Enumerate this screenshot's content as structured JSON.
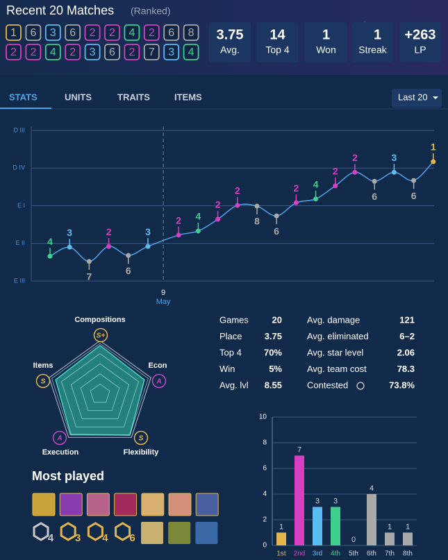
{
  "header": {
    "title": "Recent 20 Matches",
    "subtitle": "(Ranked)"
  },
  "placements": [
    [
      1,
      6,
      3,
      6,
      2,
      2,
      4,
      2,
      6,
      8
    ],
    [
      2,
      2,
      4,
      2,
      3,
      6,
      2,
      7,
      3,
      4
    ]
  ],
  "placement_colors": [
    "#e3b54a",
    "#d63fc2",
    "#5bbcf2",
    "#3ecf8e",
    "#a9a9a9",
    "#a9a9a9",
    "#a9a9a9",
    "#a9a9a9"
  ],
  "summary": [
    {
      "value": 3.75,
      "label": "Avg."
    },
    {
      "value": 14,
      "label": "Top 4"
    },
    {
      "value": 1,
      "label": "Won"
    },
    {
      "value": 1,
      "label": "Streak"
    },
    {
      "value": "+263",
      "label": "LP"
    }
  ],
  "tabs": [
    "STATS",
    "UNITS",
    "TRAITS",
    "ITEMS"
  ],
  "active_tab": 0,
  "filter": "Last 20",
  "chart_data": [
    {
      "type": "line",
      "color": "#4fa3e8",
      "grid": true,
      "ylim": [
        0,
        400
      ],
      "yticks": [
        {
          "value": 400,
          "label": "D III"
        },
        {
          "value": 300,
          "label": "D IV"
        },
        {
          "value": 200,
          "label": "E I"
        },
        {
          "value": 100,
          "label": "E II"
        },
        {
          "value": 0,
          "label": "E III"
        }
      ],
      "values": [
        66,
        90,
        52,
        92,
        68,
        92,
        122,
        133,
        164,
        201,
        199,
        173,
        208,
        218,
        253,
        289,
        265,
        289,
        267,
        317
      ],
      "x_annotation": {
        "day": "9",
        "month": "May"
      }
    },
    {
      "type": "radar",
      "color": "#2a9d8f",
      "categories": [
        "Compositions",
        "Econ",
        "Flexibility",
        "Execution",
        "Items"
      ],
      "grades": [
        "S+",
        "A",
        "S",
        "A",
        "S"
      ],
      "grade_colors": {
        "S+": "#e3b54a",
        "S": "#e3b54a",
        "A": "#c746c9"
      },
      "values": [
        4.8,
        4.6,
        5,
        4.9,
        4.6
      ],
      "rlim": [
        0,
        5
      ],
      "rticks": [
        1,
        2,
        3,
        4,
        5
      ]
    },
    {
      "type": "bar",
      "categories": [
        "1st",
        "2nd",
        "3rd",
        "4th",
        "5th",
        "6th",
        "7th",
        "8th"
      ],
      "values": [
        1,
        7,
        3,
        3,
        0,
        4,
        1,
        1
      ],
      "colors": [
        "#e3b54a",
        "#d63fc2",
        "#5bbcf2",
        "#3ecf8e",
        "#a9a9a9",
        "#a9a9a9",
        "#a9a9a9",
        "#a9a9a9"
      ],
      "ylim": [
        0,
        10
      ],
      "yticks": [
        0,
        2,
        4,
        6,
        8,
        10
      ],
      "grid": true
    }
  ],
  "stats": {
    "left": [
      [
        "Games",
        20
      ],
      [
        "Place",
        3.75
      ],
      [
        "Top 4",
        "70%"
      ],
      [
        "Win",
        "5%"
      ],
      [
        "Avg. lvl",
        8.55
      ]
    ],
    "right": [
      [
        "Avg. damage",
        121
      ],
      [
        "Avg. eliminated",
        "6–2"
      ],
      [
        "Avg. star level",
        2.06
      ],
      [
        "Avg. team cost",
        78.3
      ],
      [
        "Contested",
        "73.8%"
      ]
    ]
  },
  "most_played": {
    "title": "Most played",
    "trait_counts": [
      "4",
      "3",
      "4",
      "6"
    ]
  }
}
